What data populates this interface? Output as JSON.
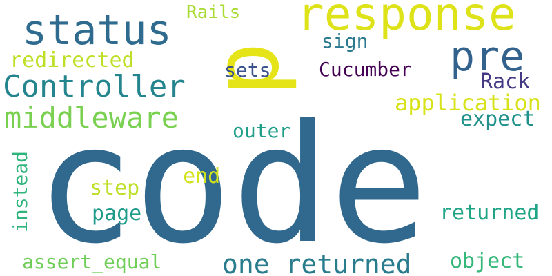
{
  "words": {
    "code": "code",
    "p": "p",
    "response": "response",
    "status": "status",
    "pre": "pre",
    "controller": "Controller",
    "middleware": "middleware",
    "redirected": "redirected",
    "rails": "Rails",
    "sign": "sign",
    "sets": "sets",
    "cucumber": "Cucumber",
    "rack": "Rack",
    "application": "application",
    "expect": "expect",
    "outer": "outer",
    "instead": "instead",
    "end": "end",
    "step": "step",
    "page": "page",
    "returned": "returned",
    "one_returned": "one returned",
    "assert_equal": "assert_equal",
    "object": "object"
  },
  "colors": {
    "code": "#31688e",
    "p": "#e4e419",
    "response": "#dde318",
    "status": "#2f6b8e",
    "pre": "#33638d",
    "controller": "#25858e",
    "middleware": "#7ad151",
    "redirected": "#bddf26",
    "rails": "#a8db34",
    "sign": "#2a788e",
    "sets": "#3b528b",
    "cucumber": "#440154",
    "rack": "#443983",
    "application": "#d8e219",
    "expect": "#21918c",
    "outer": "#1f9e89",
    "instead": "#2fb47c",
    "end": "#d2e21b",
    "step": "#bddf26",
    "page": "#1e9b8a",
    "returned": "#20a486",
    "one_returned": "#287c8e",
    "assert_equal": "#6ece58",
    "object": "#35b779"
  }
}
